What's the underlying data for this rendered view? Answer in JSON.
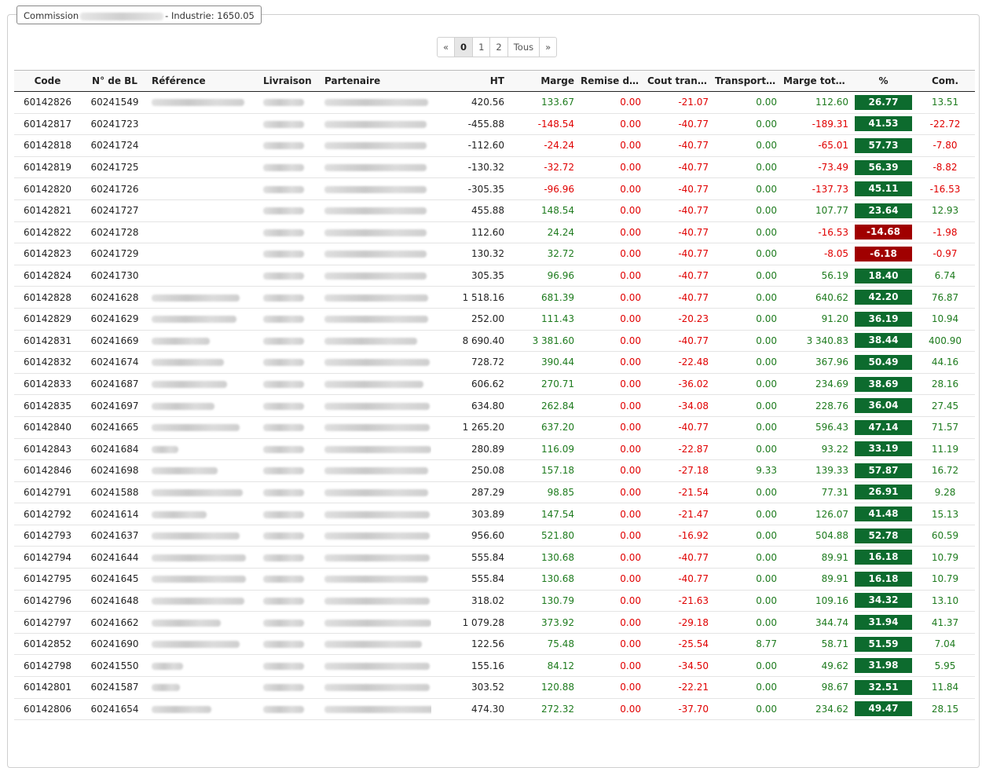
{
  "commission": {
    "label": "Commission",
    "name_hidden": "",
    "suffix": "- Industrie: 1650.05"
  },
  "pagination": [
    "«",
    "0",
    "1",
    "2",
    "Tous",
    "»"
  ],
  "pagination_active": "0",
  "columns": [
    "Code",
    "N° de BL",
    "Référence",
    "Livraison",
    "Partenaire",
    "HT",
    "Marge",
    "Remise de ...",
    "Cout trans...",
    "Transport ...",
    "Marge totale",
    "%",
    "Com."
  ],
  "colors": {
    "positive": "#1e7b1e",
    "negative": "#e00000",
    "pct_good": "#0d6b2e",
    "pct_bad": "#a00000"
  },
  "rows": [
    {
      "code": "60142826",
      "bl": "60241549",
      "ref": "",
      "livraison": "",
      "partenaire": "",
      "ht": "420.56",
      "marge": "133.67",
      "remise": "0.00",
      "cout": "-21.07",
      "transport": "0.00",
      "marge_totale": "112.60",
      "pct": "26.77",
      "com": "13.51"
    },
    {
      "code": "60142817",
      "bl": "60241723",
      "ref": "",
      "livraison": "",
      "partenaire": "",
      "ht": "-455.88",
      "marge": "-148.54",
      "remise": "0.00",
      "cout": "-40.77",
      "transport": "0.00",
      "marge_totale": "-189.31",
      "pct": "41.53",
      "com": "-22.72"
    },
    {
      "code": "60142818",
      "bl": "60241724",
      "ref": "",
      "livraison": "",
      "partenaire": "",
      "ht": "-112.60",
      "marge": "-24.24",
      "remise": "0.00",
      "cout": "-40.77",
      "transport": "0.00",
      "marge_totale": "-65.01",
      "pct": "57.73",
      "com": "-7.80"
    },
    {
      "code": "60142819",
      "bl": "60241725",
      "ref": "",
      "livraison": "",
      "partenaire": "",
      "ht": "-130.32",
      "marge": "-32.72",
      "remise": "0.00",
      "cout": "-40.77",
      "transport": "0.00",
      "marge_totale": "-73.49",
      "pct": "56.39",
      "com": "-8.82"
    },
    {
      "code": "60142820",
      "bl": "60241726",
      "ref": "",
      "livraison": "",
      "partenaire": "",
      "ht": "-305.35",
      "marge": "-96.96",
      "remise": "0.00",
      "cout": "-40.77",
      "transport": "0.00",
      "marge_totale": "-137.73",
      "pct": "45.11",
      "com": "-16.53"
    },
    {
      "code": "60142821",
      "bl": "60241727",
      "ref": "",
      "livraison": "",
      "partenaire": "",
      "ht": "455.88",
      "marge": "148.54",
      "remise": "0.00",
      "cout": "-40.77",
      "transport": "0.00",
      "marge_totale": "107.77",
      "pct": "23.64",
      "com": "12.93"
    },
    {
      "code": "60142822",
      "bl": "60241728",
      "ref": "",
      "livraison": "",
      "partenaire": "",
      "ht": "112.60",
      "marge": "24.24",
      "remise": "0.00",
      "cout": "-40.77",
      "transport": "0.00",
      "marge_totale": "-16.53",
      "pct": "-14.68",
      "com": "-1.98"
    },
    {
      "code": "60142823",
      "bl": "60241729",
      "ref": "",
      "livraison": "",
      "partenaire": "",
      "ht": "130.32",
      "marge": "32.72",
      "remise": "0.00",
      "cout": "-40.77",
      "transport": "0.00",
      "marge_totale": "-8.05",
      "pct": "-6.18",
      "com": "-0.97"
    },
    {
      "code": "60142824",
      "bl": "60241730",
      "ref": "",
      "livraison": "",
      "partenaire": "",
      "ht": "305.35",
      "marge": "96.96",
      "remise": "0.00",
      "cout": "-40.77",
      "transport": "0.00",
      "marge_totale": "56.19",
      "pct": "18.40",
      "com": "6.74"
    },
    {
      "code": "60142828",
      "bl": "60241628",
      "ref": "",
      "livraison": "",
      "partenaire": "",
      "ht": "1 518.16",
      "marge": "681.39",
      "remise": "0.00",
      "cout": "-40.77",
      "transport": "0.00",
      "marge_totale": "640.62",
      "pct": "42.20",
      "com": "76.87"
    },
    {
      "code": "60142829",
      "bl": "60241629",
      "ref": "",
      "livraison": "",
      "partenaire": "",
      "ht": "252.00",
      "marge": "111.43",
      "remise": "0.00",
      "cout": "-20.23",
      "transport": "0.00",
      "marge_totale": "91.20",
      "pct": "36.19",
      "com": "10.94"
    },
    {
      "code": "60142831",
      "bl": "60241669",
      "ref": "",
      "livraison": "",
      "partenaire": "",
      "ht": "8 690.40",
      "marge": "3 381.60",
      "remise": "0.00",
      "cout": "-40.77",
      "transport": "0.00",
      "marge_totale": "3 340.83",
      "pct": "38.44",
      "com": "400.90"
    },
    {
      "code": "60142832",
      "bl": "60241674",
      "ref": "",
      "livraison": "",
      "partenaire": "",
      "ht": "728.72",
      "marge": "390.44",
      "remise": "0.00",
      "cout": "-22.48",
      "transport": "0.00",
      "marge_totale": "367.96",
      "pct": "50.49",
      "com": "44.16"
    },
    {
      "code": "60142833",
      "bl": "60241687",
      "ref": "",
      "livraison": "",
      "partenaire": "",
      "ht": "606.62",
      "marge": "270.71",
      "remise": "0.00",
      "cout": "-36.02",
      "transport": "0.00",
      "marge_totale": "234.69",
      "pct": "38.69",
      "com": "28.16"
    },
    {
      "code": "60142835",
      "bl": "60241697",
      "ref": "",
      "livraison": "",
      "partenaire": "",
      "ht": "634.80",
      "marge": "262.84",
      "remise": "0.00",
      "cout": "-34.08",
      "transport": "0.00",
      "marge_totale": "228.76",
      "pct": "36.04",
      "com": "27.45"
    },
    {
      "code": "60142840",
      "bl": "60241665",
      "ref": "",
      "livraison": "",
      "partenaire": "",
      "ht": "1 265.20",
      "marge": "637.20",
      "remise": "0.00",
      "cout": "-40.77",
      "transport": "0.00",
      "marge_totale": "596.43",
      "pct": "47.14",
      "com": "71.57"
    },
    {
      "code": "60142843",
      "bl": "60241684",
      "ref": "",
      "livraison": "",
      "partenaire": "",
      "ht": "280.89",
      "marge": "116.09",
      "remise": "0.00",
      "cout": "-22.87",
      "transport": "0.00",
      "marge_totale": "93.22",
      "pct": "33.19",
      "com": "11.19"
    },
    {
      "code": "60142846",
      "bl": "60241698",
      "ref": "",
      "livraison": "",
      "partenaire": "",
      "ht": "250.08",
      "marge": "157.18",
      "remise": "0.00",
      "cout": "-27.18",
      "transport": "9.33",
      "marge_totale": "139.33",
      "pct": "57.87",
      "com": "16.72"
    },
    {
      "code": "60142791",
      "bl": "60241588",
      "ref": "",
      "livraison": "",
      "partenaire": "",
      "ht": "287.29",
      "marge": "98.85",
      "remise": "0.00",
      "cout": "-21.54",
      "transport": "0.00",
      "marge_totale": "77.31",
      "pct": "26.91",
      "com": "9.28"
    },
    {
      "code": "60142792",
      "bl": "60241614",
      "ref": "",
      "livraison": "",
      "partenaire": "",
      "ht": "303.89",
      "marge": "147.54",
      "remise": "0.00",
      "cout": "-21.47",
      "transport": "0.00",
      "marge_totale": "126.07",
      "pct": "41.48",
      "com": "15.13"
    },
    {
      "code": "60142793",
      "bl": "60241637",
      "ref": "",
      "livraison": "",
      "partenaire": "",
      "ht": "956.60",
      "marge": "521.80",
      "remise": "0.00",
      "cout": "-16.92",
      "transport": "0.00",
      "marge_totale": "504.88",
      "pct": "52.78",
      "com": "60.59"
    },
    {
      "code": "60142794",
      "bl": "60241644",
      "ref": "",
      "livraison": "",
      "partenaire": "",
      "ht": "555.84",
      "marge": "130.68",
      "remise": "0.00",
      "cout": "-40.77",
      "transport": "0.00",
      "marge_totale": "89.91",
      "pct": "16.18",
      "com": "10.79"
    },
    {
      "code": "60142795",
      "bl": "60241645",
      "ref": "",
      "livraison": "",
      "partenaire": "",
      "ht": "555.84",
      "marge": "130.68",
      "remise": "0.00",
      "cout": "-40.77",
      "transport": "0.00",
      "marge_totale": "89.91",
      "pct": "16.18",
      "com": "10.79"
    },
    {
      "code": "60142796",
      "bl": "60241648",
      "ref": "",
      "livraison": "",
      "partenaire": "",
      "ht": "318.02",
      "marge": "130.79",
      "remise": "0.00",
      "cout": "-21.63",
      "transport": "0.00",
      "marge_totale": "109.16",
      "pct": "34.32",
      "com": "13.10"
    },
    {
      "code": "60142797",
      "bl": "60241662",
      "ref": "",
      "livraison": "",
      "partenaire": "",
      "ht": "1 079.28",
      "marge": "373.92",
      "remise": "0.00",
      "cout": "-29.18",
      "transport": "0.00",
      "marge_totale": "344.74",
      "pct": "31.94",
      "com": "41.37"
    },
    {
      "code": "60142852",
      "bl": "60241690",
      "ref": "",
      "livraison": "",
      "partenaire": "",
      "ht": "122.56",
      "marge": "75.48",
      "remise": "0.00",
      "cout": "-25.54",
      "transport": "8.77",
      "marge_totale": "58.71",
      "pct": "51.59",
      "com": "7.04"
    },
    {
      "code": "60142798",
      "bl": "60241550",
      "ref": "",
      "livraison": "",
      "partenaire": "",
      "ht": "155.16",
      "marge": "84.12",
      "remise": "0.00",
      "cout": "-34.50",
      "transport": "0.00",
      "marge_totale": "49.62",
      "pct": "31.98",
      "com": "5.95"
    },
    {
      "code": "60142801",
      "bl": "60241587",
      "ref": "",
      "livraison": "",
      "partenaire": "",
      "ht": "303.52",
      "marge": "120.88",
      "remise": "0.00",
      "cout": "-22.21",
      "transport": "0.00",
      "marge_totale": "98.67",
      "pct": "32.51",
      "com": "11.84"
    },
    {
      "code": "60142806",
      "bl": "60241654",
      "ref": "",
      "livraison": "",
      "partenaire": "",
      "ht": "474.30",
      "marge": "272.32",
      "remise": "0.00",
      "cout": "-37.70",
      "transport": "0.00",
      "marge_totale": "234.62",
      "pct": "49.47",
      "com": "28.15"
    }
  ]
}
